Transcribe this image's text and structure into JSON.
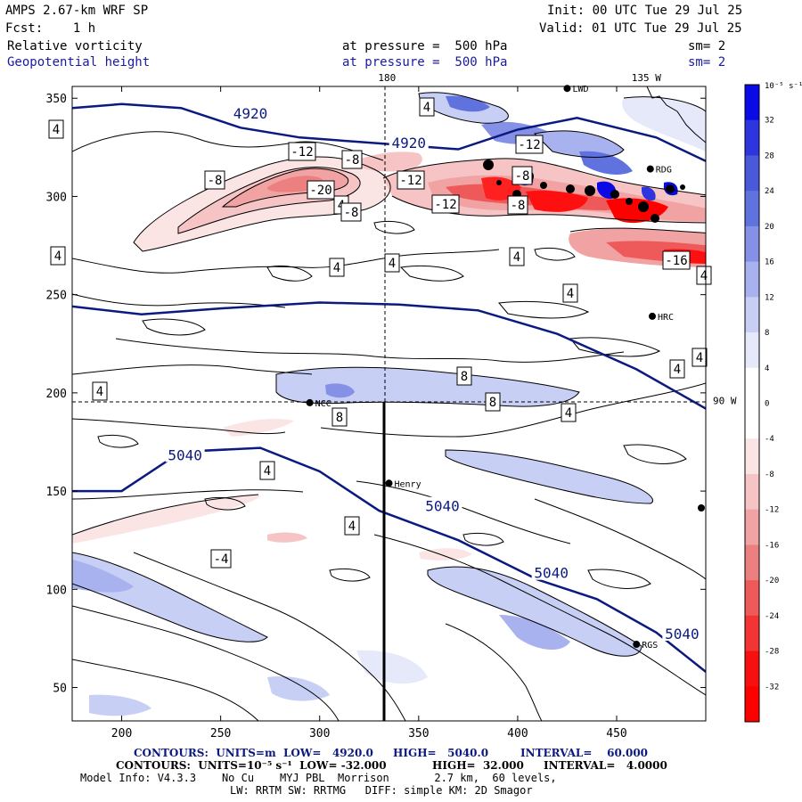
{
  "header": {
    "model": "AMPS 2.67-km WRF SP",
    "fcst": "Fcst:    1 h",
    "init": "Init: 00 UTC Tue 29 Jul 25",
    "valid": "Valid: 01 UTC Tue 29 Jul 25",
    "field1": "Relative vorticity",
    "field2": "Geopotential height",
    "press1": "at pressure =  500 hPa",
    "press2": "at pressure =  500 hPa",
    "sm1": "sm= 2",
    "sm2": "sm= 2"
  },
  "chart_data": {
    "type": "heatmap",
    "xlim": [
      175,
      495
    ],
    "ylim": [
      33,
      356
    ],
    "xticks": [
      200,
      250,
      300,
      350,
      400,
      450
    ],
    "yticks": [
      50,
      100,
      150,
      200,
      250,
      300,
      350
    ],
    "lon_labels": [
      {
        "text": "180",
        "x": 334
      },
      {
        "text": "135 W",
        "x": 465
      },
      {
        "text": "90 W",
        "y": 196
      }
    ],
    "colorbar": {
      "unit": "10⁻⁵ s⁻¹",
      "ticks": [
        32,
        28,
        24,
        20,
        16,
        12,
        8,
        4,
        0,
        -4,
        -8,
        -12,
        -16,
        -20,
        -24,
        -28,
        -32
      ],
      "colors": [
        "#0a0ae6",
        "#2e35de",
        "#4a59d9",
        "#5f72de",
        "#8591e6",
        "#a8b2ee",
        "#c8cff5",
        "#e6e9fa",
        "#ffffff",
        "#ffffff",
        "#fbe4e4",
        "#f6c4c4",
        "#f1a3a3",
        "#ec8080",
        "#ee5a5a",
        "#f23434",
        "#f71010",
        "#ff0000"
      ]
    },
    "height_contours": {
      "labels": [
        "4920",
        "4920",
        "5040",
        "5040",
        "5040",
        "5040"
      ],
      "lines": [
        [
          [
            175,
            345
          ],
          [
            200,
            347
          ],
          [
            230,
            345
          ],
          [
            260,
            335
          ],
          [
            290,
            330
          ],
          [
            330,
            327
          ],
          [
            370,
            324
          ],
          [
            400,
            334
          ],
          [
            430,
            340
          ],
          [
            470,
            330
          ],
          [
            495,
            318
          ]
        ],
        [
          [
            175,
            244
          ],
          [
            210,
            240
          ],
          [
            250,
            243
          ],
          [
            300,
            246
          ],
          [
            340,
            245
          ],
          [
            380,
            242
          ],
          [
            420,
            230
          ],
          [
            460,
            212
          ],
          [
            495,
            192
          ]
        ],
        [
          [
            175,
            150
          ],
          [
            200,
            150
          ],
          [
            230,
            170
          ],
          [
            270,
            172
          ],
          [
            300,
            160
          ],
          [
            330,
            140
          ],
          [
            370,
            125
          ],
          [
            410,
            105
          ],
          [
            440,
            95
          ],
          [
            470,
            78
          ],
          [
            495,
            58
          ]
        ]
      ],
      "label_positions": [
        [
          265,
          342
        ],
        [
          345,
          327
        ],
        [
          232,
          168
        ],
        [
          362,
          142
        ],
        [
          417,
          108
        ],
        [
          483,
          77
        ]
      ]
    },
    "vorticity_labels": [
      "4",
      "4",
      "4",
      "4",
      "4",
      "4",
      "4",
      "4",
      "4",
      "4",
      "4",
      "4",
      "4",
      "4",
      "4",
      "-4",
      "-8",
      "-8",
      "-8",
      "-8",
      "-12",
      "-12",
      "-12",
      "-12",
      "-20",
      "-16",
      "-8",
      "8",
      "8",
      "8"
    ],
    "stations": [
      {
        "name": "RDG",
        "x": 467,
        "y": 314
      },
      {
        "name": "HRC",
        "x": 468,
        "y": 239
      },
      {
        "name": "NCC",
        "x": 295,
        "y": 195
      },
      {
        "name": "Henry",
        "x": 335,
        "y": 154
      },
      {
        "name": "RGS",
        "x": 460,
        "y": 72
      },
      {
        "name": "LWD",
        "x": 425,
        "y": 355
      }
    ]
  },
  "footer": {
    "contours1_a": "CONTOURS:  UNITS=m  LOW=   4920.0",
    "contours1_b": "HIGH=   5040.0",
    "contours1_c": "INTERVAL=    60.000",
    "contours2_a": "CONTOURS:  UNITS=10⁻⁵ s⁻¹  LOW= -32.000",
    "contours2_b": "HIGH=  32.000",
    "contours2_c": "INTERVAL=   4.0000",
    "model_info": "Model Info: V4.3.3    No Cu    MYJ PBL  Morrison       2.7 km,  60 levels,",
    "model_info2": "LW: RRTM SW: RRTMG   DIFF: simple KM: 2D Smagor"
  }
}
